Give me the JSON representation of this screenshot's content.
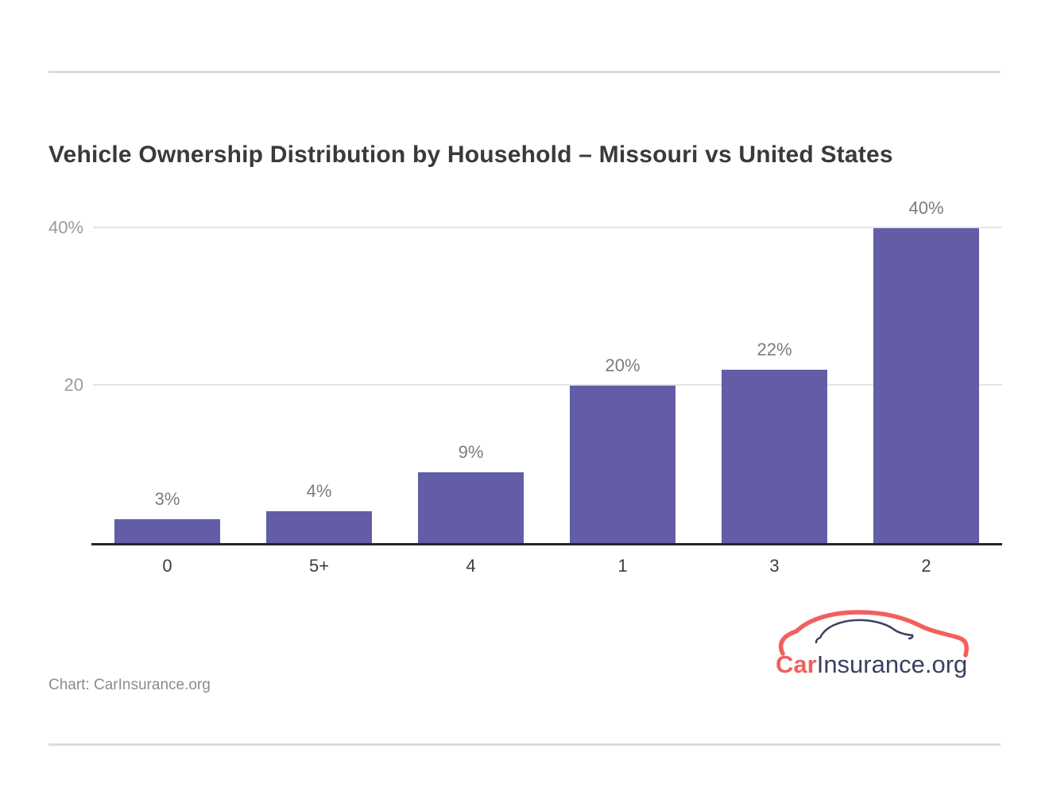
{
  "page": {
    "title": "Vehicle Ownership Distribution by Household – Missouri vs United States",
    "caption": "Chart: CarInsurance.org"
  },
  "logo": {
    "car": "Car",
    "insurance": "Insurance",
    "org": ".org",
    "red": "#f2605d",
    "navy": "#3b4061"
  },
  "chart_data": {
    "type": "bar",
    "title": "Vehicle Ownership Distribution by Household – Missouri vs United States",
    "categories": [
      "0",
      "5+",
      "4",
      "1",
      "3",
      "2"
    ],
    "values": [
      3,
      4,
      9,
      20,
      22,
      40
    ],
    "value_labels": [
      "3%",
      "4%",
      "9%",
      "20%",
      "22%",
      "40%"
    ],
    "yticks": [
      {
        "value": 20,
        "label": "20"
      },
      {
        "value": 40,
        "label": "40%"
      }
    ],
    "ylim": [
      0,
      44
    ],
    "bar_color": "#625da6",
    "grid": "horizontal gridlines at labeled ticks only",
    "legend": "none",
    "xlabel": "",
    "ylabel": ""
  }
}
